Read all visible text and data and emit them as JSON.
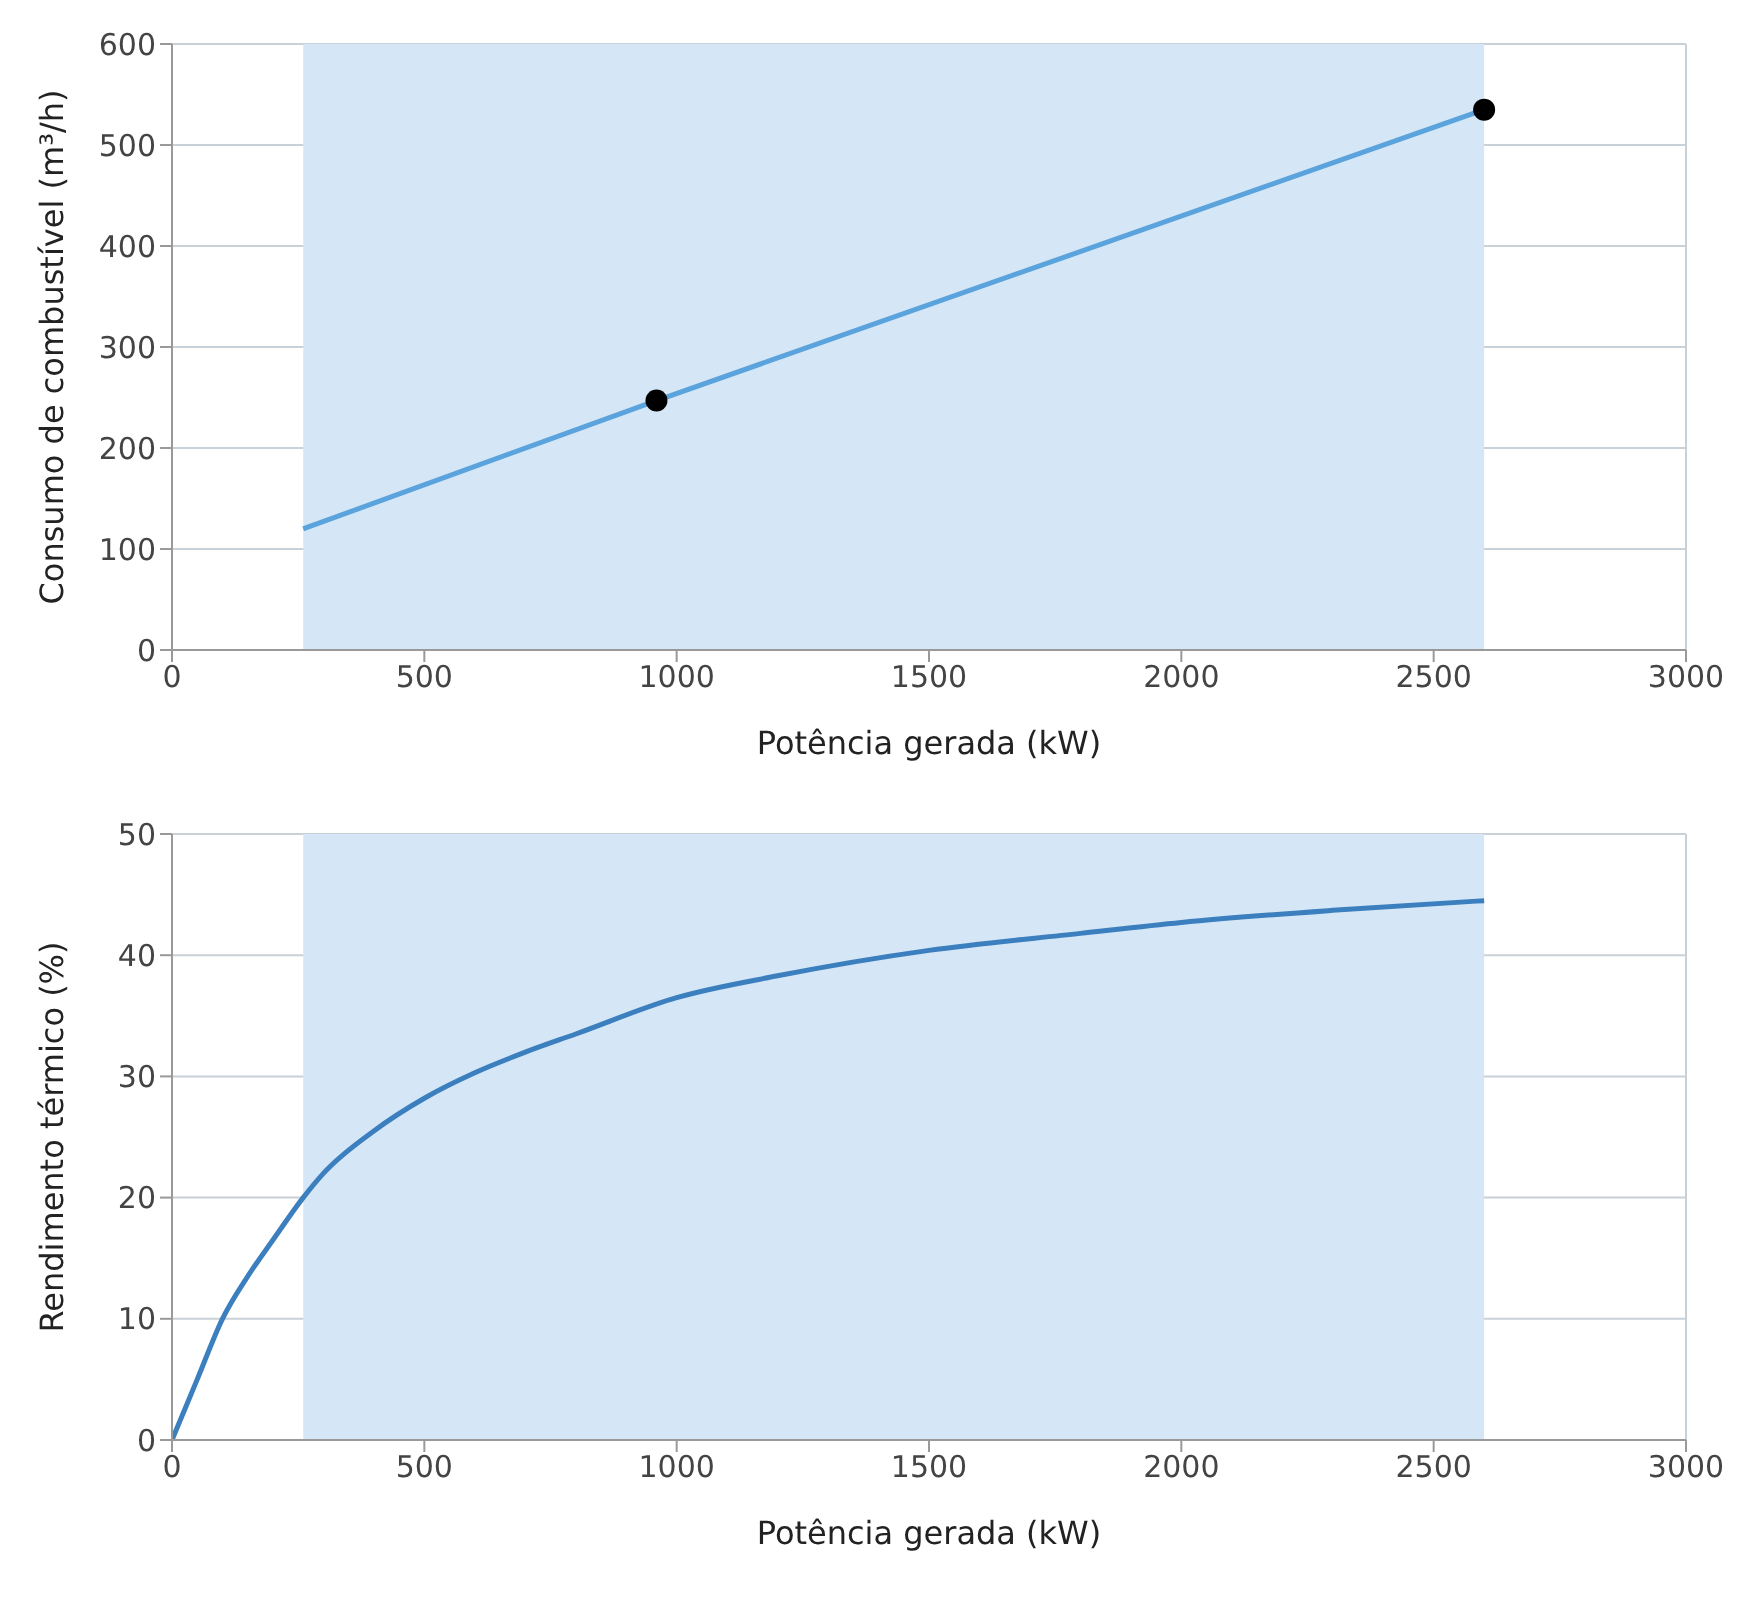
{
  "chart_data": [
    {
      "type": "line",
      "xlabel": "Potência gerada (kW)",
      "ylabel": "Consumo de combustível (m³/h)",
      "xlim": [
        0,
        3000
      ],
      "xticks": [
        0,
        500,
        1000,
        1500,
        2000,
        2500,
        3000
      ],
      "ylim": [
        0,
        600
      ],
      "yticks": [
        0,
        100,
        200,
        300,
        400,
        500,
        600
      ],
      "grid": true,
      "bands": [
        {
          "axis": "x",
          "from": 260,
          "to": 2600,
          "color": "#d5e7f6"
        }
      ],
      "series": [
        {
          "color": "#5ba3dc",
          "x": [
            260,
            960,
            2600
          ],
          "values": [
            120,
            247,
            535
          ]
        },
        {
          "type": "scatter",
          "color": "#000000",
          "marker": "circle",
          "x": [
            960,
            2600
          ],
          "values": [
            247,
            535
          ]
        }
      ]
    },
    {
      "type": "line",
      "xlabel": "Potência gerada (kW)",
      "ylabel": "Rendimento térmico (%)",
      "xlim": [
        0,
        3000
      ],
      "xticks": [
        0,
        500,
        1000,
        1500,
        2000,
        2500,
        3000
      ],
      "ylim": [
        0,
        50
      ],
      "yticks": [
        0,
        10,
        20,
        30,
        40,
        50
      ],
      "grid": true,
      "bands": [
        {
          "axis": "x",
          "from": 260,
          "to": 2600,
          "color": "#d5e7f6"
        }
      ],
      "series": [
        {
          "color": "#3c7fbf",
          "x": [
            0,
            50,
            100,
            150,
            200,
            260,
            300,
            400,
            500,
            600,
            700,
            800,
            1000,
            1200,
            1500,
            1800,
            2000,
            2300,
            2600
          ],
          "values": [
            0,
            5,
            10,
            13.5,
            16.5,
            20,
            22,
            25.5,
            28.2,
            30.3,
            32,
            33.5,
            36.5,
            38.3,
            40.4,
            41.8,
            42.7,
            43.7,
            44.5
          ]
        }
      ]
    }
  ]
}
